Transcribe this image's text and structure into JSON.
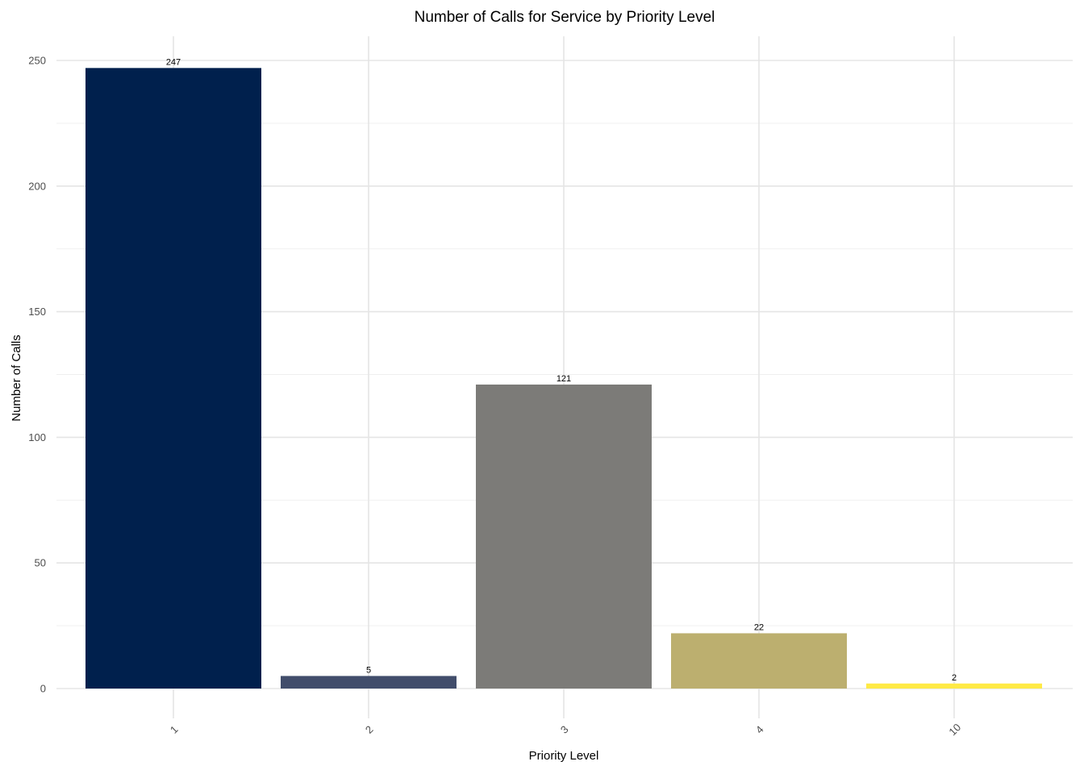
{
  "chart_data": {
    "type": "bar",
    "title": "Number of Calls for Service by Priority Level",
    "xlabel": "Priority Level",
    "ylabel": "Number of Calls",
    "categories": [
      "1",
      "2",
      "3",
      "4",
      "10"
    ],
    "values": [
      247,
      5,
      121,
      22,
      2
    ],
    "data_labels": [
      "247",
      "5",
      "121",
      "22",
      "2"
    ],
    "colors": [
      "#00204D",
      "#414D6B",
      "#7C7B78",
      "#BCAF6F",
      "#FFEA46"
    ],
    "ylim": [
      0,
      250
    ],
    "y_ticks": [
      "0",
      "50",
      "100",
      "150",
      "200",
      "250"
    ],
    "grid": true,
    "legend": "none",
    "x_tick_rotation": "45 degrees"
  }
}
